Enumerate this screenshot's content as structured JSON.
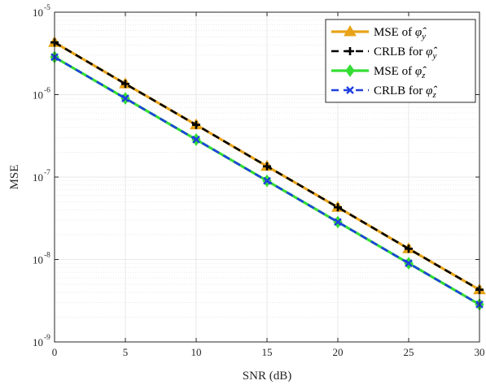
{
  "chart_data": {
    "type": "line",
    "title": "",
    "xlabel": "SNR (dB)",
    "ylabel": "MSE",
    "xlim": [
      0,
      30
    ],
    "ylim": [
      1e-09,
      1e-05
    ],
    "yscale": "log",
    "grid": true,
    "minor_grid": true,
    "legend_position": "top-right",
    "x_ticks": [
      0,
      5,
      10,
      15,
      20,
      25,
      30
    ],
    "y_ticks": [
      {
        "base": "10",
        "exp": "-9",
        "value": 1e-09
      },
      {
        "base": "10",
        "exp": "-8",
        "value": 1e-08
      },
      {
        "base": "10",
        "exp": "-7",
        "value": 1e-07
      },
      {
        "base": "10",
        "exp": "-6",
        "value": 1e-06
      },
      {
        "base": "10",
        "exp": "-5",
        "value": 1e-05
      }
    ],
    "x": [
      0,
      5,
      10,
      15,
      20,
      25,
      30
    ],
    "series": [
      {
        "name_main": "MSE of ",
        "name_symbol": "φ̂",
        "name_sub": "y",
        "values": [
          4.3e-06,
          1.35e-06,
          4.3e-07,
          1.35e-07,
          4.3e-08,
          1.35e-08,
          4.3e-09
        ],
        "color": "#E8A317",
        "linestyle": "solid",
        "marker": "triangle"
      },
      {
        "name_main": "CRLB for ",
        "name_symbol": "φ̂",
        "name_sub": "y",
        "values": [
          4.3e-06,
          1.35e-06,
          4.3e-07,
          1.35e-07,
          4.3e-08,
          1.35e-08,
          4.3e-09
        ],
        "color": "#000000",
        "linestyle": "dashed",
        "marker": "plus"
      },
      {
        "name_main": "MSE of ",
        "name_symbol": "φ̂",
        "name_sub": "z",
        "values": [
          2.85e-06,
          9e-07,
          2.85e-07,
          9e-08,
          2.85e-08,
          9e-09,
          2.85e-09
        ],
        "color": "#33DD33",
        "linestyle": "solid",
        "marker": "diamond"
      },
      {
        "name_main": "CRLB for ",
        "name_symbol": "φ̂",
        "name_sub": "z",
        "values": [
          2.85e-06,
          9e-07,
          2.85e-07,
          9e-08,
          2.85e-08,
          9e-09,
          2.85e-09
        ],
        "color": "#1F3FE0",
        "linestyle": "dashed",
        "marker": "x"
      }
    ]
  }
}
